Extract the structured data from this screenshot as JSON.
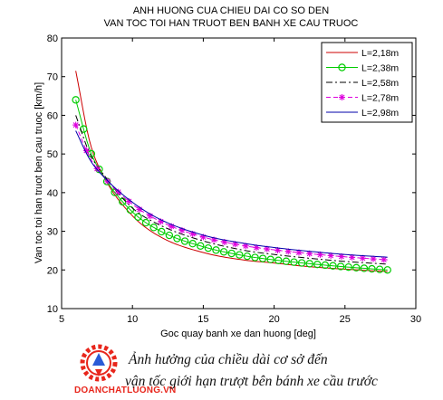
{
  "chart_data": {
    "type": "line",
    "title": [
      "ANH HUONG CUA CHIEU DAI CO SO DEN",
      "VAN TOC TOI HAN TRUOT BEN BANH XE CAU TRUOC"
    ],
    "xlabel": "Goc quay banh xe dan huong [deg]",
    "ylabel": "Van toc toi han truot ben cau truoc [km/h]",
    "xlim": [
      5,
      30
    ],
    "ylim": [
      10,
      80
    ],
    "xticks": [
      5,
      10,
      15,
      20,
      25,
      30
    ],
    "yticks": [
      10,
      20,
      30,
      40,
      50,
      60,
      70,
      80
    ],
    "grid": false,
    "legend_position": "top-right",
    "series": [
      {
        "name": "L=2,18m",
        "color": "#cc0000",
        "marker": "none",
        "dash": "solid",
        "x": [
          6,
          7,
          8,
          10,
          12,
          15,
          18,
          20,
          22,
          25,
          28
        ],
        "y": [
          71.5,
          53,
          44,
          34,
          28.5,
          24.5,
          22.5,
          21.8,
          21,
          20.2,
          19.6
        ]
      },
      {
        "name": "L=2,38m",
        "color": "#00cc00",
        "marker": "circle",
        "dash": "solid",
        "x": [
          6,
          7,
          8,
          10,
          12,
          15,
          18,
          20,
          22,
          25,
          28
        ],
        "y": [
          64,
          51,
          44,
          35,
          30,
          26,
          23.6,
          22.6,
          21.8,
          20.8,
          20.0
        ]
      },
      {
        "name": "L=2,58m",
        "color": "#000000",
        "marker": "none",
        "dash": "dashdot",
        "x": [
          6,
          7,
          8,
          10,
          12,
          15,
          18,
          20,
          22,
          25,
          28
        ],
        "y": [
          60,
          50,
          44.5,
          36,
          31.5,
          27.5,
          25,
          24,
          23.2,
          22.2,
          21.5
        ]
      },
      {
        "name": "L=2,78m",
        "color": "#dd00dd",
        "marker": "star",
        "dash": "dashed",
        "x": [
          6,
          7,
          8,
          10,
          12,
          15,
          18,
          20,
          22,
          25,
          28
        ],
        "y": [
          57.5,
          49,
          44,
          37,
          32.5,
          28.5,
          26.2,
          25.2,
          24.4,
          23.4,
          22.6
        ]
      },
      {
        "name": "L=2,98m",
        "color": "#0000aa",
        "marker": "none",
        "dash": "solid",
        "x": [
          6,
          7,
          8,
          10,
          12,
          15,
          18,
          20,
          22,
          25,
          28
        ],
        "y": [
          56,
          48.5,
          44,
          37.5,
          33,
          29,
          26.8,
          25.8,
          25,
          24,
          23.3
        ]
      }
    ]
  },
  "caption": {
    "line1": "Ảnh hưởng của chiều dài cơ sở đến",
    "line2": "vận tốc giới hạn trượt bên bánh xe cầu trước"
  },
  "watermark": {
    "logo_icon": "gear-logo-icon",
    "text": "DOANCHATLUONG.VN",
    "color": "#e8261c"
  }
}
